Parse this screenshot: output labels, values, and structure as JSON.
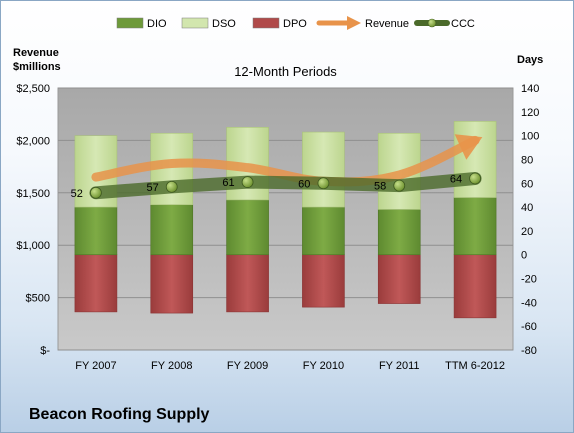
{
  "chart_data": {
    "type": "bar",
    "subtitle": "12-Month Periods",
    "company": "Beacon Roofing Supply",
    "left_axis_title": [
      "Revenue",
      "$millions"
    ],
    "right_axis_title": "Days",
    "categories": [
      "FY 2007",
      "FY 2008",
      "FY 2009",
      "FY 2010",
      "FY 2011",
      "TTM 6-2012"
    ],
    "left_axis": {
      "range": [
        0,
        2500
      ],
      "ticks": [
        "$-",
        "$500",
        "$1,000",
        "$1,500",
        "$2,000",
        "$2,500"
      ]
    },
    "right_axis": {
      "range": [
        -80,
        140
      ],
      "ticks": [
        "-80",
        "-60",
        "-40",
        "-20",
        "0",
        "20",
        "40",
        "60",
        "80",
        "100",
        "120",
        "140"
      ]
    },
    "legend": {
      "position": "top",
      "items": [
        "DIO",
        "DSO",
        "DPO",
        "Revenue",
        "CCC"
      ]
    },
    "series": [
      {
        "name": "DIO",
        "axis": "right",
        "values": [
          40,
          42,
          46,
          40,
          38,
          48
        ]
      },
      {
        "name": "DSO",
        "axis": "right",
        "values": [
          60,
          60,
          61,
          63,
          64,
          64
        ]
      },
      {
        "name": "DPO",
        "axis": "right",
        "values": [
          -48,
          -49,
          -48,
          -44,
          -41,
          -53
        ]
      },
      {
        "name": "Revenue",
        "axis": "left",
        "values": [
          1650,
          1780,
          1740,
          1610,
          1670,
          2000
        ]
      },
      {
        "name": "CCC",
        "axis": "right",
        "values": [
          52,
          57,
          61,
          60,
          58,
          64
        ],
        "labels": [
          "52",
          "57",
          "61",
          "60",
          "58",
          "64"
        ]
      }
    ],
    "colors": {
      "dio": "#6e9a3a",
      "dso": "#c9dea0",
      "dpo": "#b04a4a",
      "revenue": "#e8934a",
      "ccc": "#4b6a2a",
      "plot_bg": "#b5b5b5"
    }
  }
}
